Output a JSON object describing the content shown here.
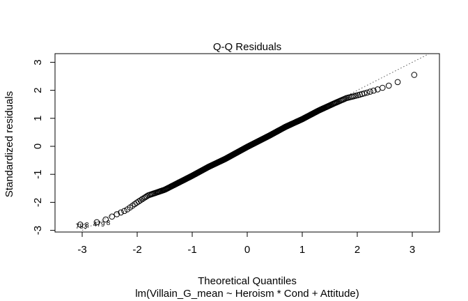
{
  "chart_data": {
    "type": "scatter",
    "title": "Q-Q Residuals",
    "xlabel": "Theoretical Quantiles",
    "ylabel": "Standardized residuals",
    "subtitle": "lm(Villain_G_mean ~ Heroism * Cond + Attitude)",
    "xlim": [
      -3.5,
      3.5
    ],
    "ylim": [
      -3.0,
      3.3
    ],
    "x_ticks": [
      "-3",
      "-2",
      "-1",
      "0",
      "1",
      "2",
      "3"
    ],
    "y_ticks": [
      "-3",
      "-2",
      "-1",
      "0",
      "1",
      "2",
      "3"
    ],
    "point_count": 520,
    "point_style": "open-circle",
    "reference_line": {
      "style": "dotted",
      "intercept": 0.0,
      "slope": 1.0
    },
    "curve": {
      "x": [
        -3.25,
        -2.95,
        -2.75,
        -2.55,
        -2.4,
        -2.2,
        -2.0,
        -1.8,
        -1.5,
        -1.2,
        -1.0,
        -0.7,
        -0.4,
        0.0,
        0.4,
        0.7,
        1.0,
        1.3,
        1.6,
        1.8,
        2.0,
        2.2,
        2.4,
        2.7,
        2.9,
        3.25
      ],
      "y": [
        -2.83,
        -2.78,
        -2.72,
        -2.6,
        -2.45,
        -2.28,
        -2.0,
        -1.75,
        -1.55,
        -1.25,
        -1.05,
        -0.73,
        -0.45,
        -0.02,
        0.38,
        0.7,
        0.97,
        1.28,
        1.55,
        1.72,
        1.82,
        1.93,
        2.05,
        2.25,
        2.5,
        2.63
      ]
    },
    "point_labels": [
      "783",
      "8",
      "479",
      "8"
    ]
  }
}
